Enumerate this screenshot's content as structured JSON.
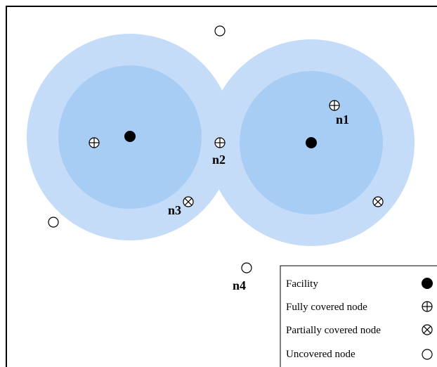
{
  "colors": {
    "outer_ring": "#c4dcf8",
    "inner_disk": "#a8cdf5",
    "facility": "#000000",
    "node_stroke": "#000000",
    "background": "#ffffff"
  },
  "facilities": [
    {
      "id": "f1"
    },
    {
      "id": "f2"
    }
  ],
  "nodes": [
    {
      "type": "uncovered",
      "label": ""
    },
    {
      "type": "fully",
      "label": ""
    },
    {
      "type": "fully",
      "label": "n1"
    },
    {
      "type": "fully",
      "label": "n2"
    },
    {
      "type": "partially",
      "label": "n3"
    },
    {
      "type": "partially",
      "label": ""
    },
    {
      "type": "uncovered",
      "label": ""
    },
    {
      "type": "uncovered",
      "label": "n4"
    }
  ],
  "legend": {
    "items": [
      {
        "label": "Facility",
        "icon": "facility-icon"
      },
      {
        "label": "Fully covered node",
        "icon": "fully-covered-icon"
      },
      {
        "label": "Partially covered node",
        "icon": "partially-covered-icon"
      },
      {
        "label": "Uncovered node",
        "icon": "uncovered-icon"
      }
    ]
  }
}
